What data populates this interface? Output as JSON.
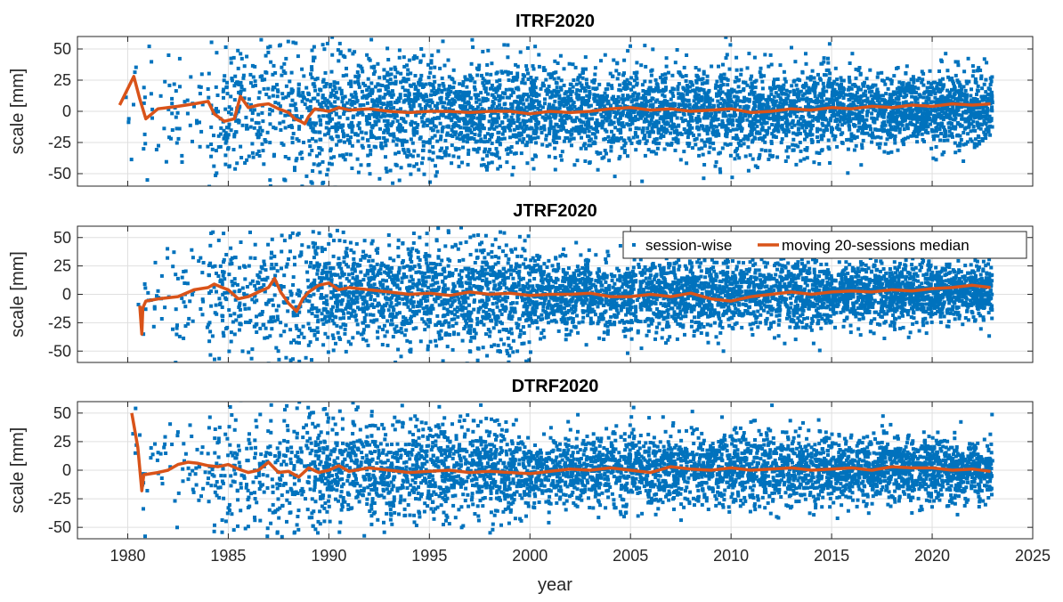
{
  "chart_data": [
    {
      "type": "scatter",
      "title": "ITRF2020",
      "ylabel": "scale [mm]",
      "xlabel": "",
      "xlim": [
        1977.5,
        2025
      ],
      "ylim": [
        -60,
        60
      ],
      "yticks": [
        50,
        25,
        0,
        -25,
        -50
      ],
      "ytick_labels": [
        "50",
        "25",
        "0",
        "-25",
        "-50"
      ],
      "grid": true,
      "legend": null,
      "scatter_spec": {
        "series": "session-wise",
        "marker": "square",
        "color": "#0072BD",
        "approx_sessions": 5500,
        "spread_by_period": [
          {
            "from": 1979.5,
            "to": 1984,
            "sd_mm": 25
          },
          {
            "from": 1984,
            "to": 1990,
            "sd_mm": 28
          },
          {
            "from": 1990,
            "to": 2000,
            "sd_mm": 22
          },
          {
            "from": 2000,
            "to": 2015,
            "sd_mm": 18
          },
          {
            "from": 2015,
            "to": 2023,
            "sd_mm": 15
          }
        ]
      },
      "median_series": {
        "name": "moving 20-sessions median",
        "color": "#D95319",
        "x": [
          1979.6,
          1980.3,
          1980.6,
          1980.9,
          1981.5,
          1982.5,
          1983.3,
          1984.0,
          1984.3,
          1984.8,
          1985.3,
          1985.6,
          1986.0,
          1986.5,
          1987.0,
          1987.5,
          1988.0,
          1988.3,
          1988.6,
          1988.8,
          1989.0,
          1989.3,
          1990.0,
          1990.5,
          1991.0,
          1992.0,
          1993.0,
          1994.0,
          1995.0,
          1996.0,
          1997.0,
          1998.0,
          1999.0,
          2000.0,
          2001.0,
          2002.0,
          2003.0,
          2004.0,
          2005.0,
          2006.0,
          2007.0,
          2008.0,
          2009.0,
          2010.0,
          2011.0,
          2012.0,
          2013.0,
          2014.0,
          2015.0,
          2016.0,
          2017.0,
          2018.0,
          2019.0,
          2020.0,
          2021.0,
          2022.0,
          2022.9
        ],
        "y": [
          5,
          28,
          10,
          -6,
          2,
          4,
          6,
          8,
          -2,
          -8,
          -6,
          12,
          3,
          5,
          6,
          2,
          -1,
          -6,
          -8,
          -10,
          -4,
          2,
          0,
          3,
          1,
          2,
          0,
          -1,
          0,
          0,
          -1,
          0,
          0,
          -2,
          0,
          -1,
          0,
          2,
          3,
          1,
          2,
          0,
          1,
          2,
          -1,
          0,
          2,
          1,
          3,
          2,
          4,
          3,
          5,
          4,
          6,
          5,
          6
        ]
      }
    },
    {
      "type": "scatter",
      "title": "JTRF2020",
      "ylabel": "scale [mm]",
      "xlabel": "",
      "xlim": [
        1977.5,
        2025
      ],
      "ylim": [
        -60,
        60
      ],
      "yticks": [
        50,
        25,
        0,
        -25,
        -50
      ],
      "ytick_labels": [
        "50",
        "25",
        "0",
        "-25",
        "-50"
      ],
      "grid": true,
      "legend": {
        "position": "top-right",
        "entries": [
          "session-wise",
          "moving 20-sessions median"
        ]
      },
      "scatter_spec": {
        "series": "session-wise",
        "marker": "square",
        "color": "#0072BD",
        "approx_sessions": 5500,
        "spread_by_period": [
          {
            "from": 1980.5,
            "to": 1984,
            "sd_mm": 22
          },
          {
            "from": 1984,
            "to": 1990,
            "sd_mm": 30
          },
          {
            "from": 1990,
            "to": 2000,
            "sd_mm": 24
          },
          {
            "from": 2000,
            "to": 2015,
            "sd_mm": 16
          },
          {
            "from": 2015,
            "to": 2023,
            "sd_mm": 13
          }
        ]
      },
      "median_series": {
        "name": "moving 20-sessions median",
        "color": "#D95319",
        "x": [
          1980.6,
          1980.7,
          1980.75,
          1980.9,
          1981.5,
          1982.5,
          1983.3,
          1984.0,
          1984.3,
          1984.7,
          1985.0,
          1985.5,
          1986.0,
          1986.5,
          1987.0,
          1987.3,
          1987.6,
          1988.0,
          1988.4,
          1988.7,
          1989.0,
          1989.5,
          1990.0,
          1990.5,
          1991.0,
          1992.0,
          1993.0,
          1994.0,
          1995.0,
          1996.0,
          1997.0,
          1998.0,
          1999.0,
          2000.0,
          2001.0,
          2002.0,
          2003.0,
          2004.0,
          2005.0,
          2006.0,
          2007.0,
          2008.0,
          2009.0,
          2010.0,
          2011.0,
          2012.0,
          2013.0,
          2014.0,
          2015.0,
          2016.0,
          2017.0,
          2018.0,
          2019.0,
          2020.0,
          2021.0,
          2022.0,
          2022.9
        ],
        "y": [
          -10,
          -35,
          -12,
          -6,
          -4,
          -2,
          4,
          6,
          9,
          6,
          4,
          -4,
          -2,
          2,
          6,
          14,
          2,
          -8,
          -15,
          -4,
          2,
          8,
          10,
          4,
          6,
          4,
          2,
          0,
          1,
          -1,
          2,
          0,
          1,
          -1,
          0,
          0,
          1,
          -2,
          -2,
          0,
          -2,
          1,
          -4,
          -6,
          -2,
          0,
          2,
          0,
          2,
          3,
          2,
          4,
          3,
          5,
          6,
          8,
          6
        ]
      }
    },
    {
      "type": "scatter",
      "title": "DTRF2020",
      "ylabel": "scale [mm]",
      "xlabel": "year",
      "xlim": [
        1977.5,
        2025
      ],
      "ylim": [
        -60,
        60
      ],
      "xticks": [
        1980,
        1985,
        1990,
        1995,
        2000,
        2005,
        2010,
        2015,
        2020,
        2025
      ],
      "xtick_labels": [
        "1980",
        "1985",
        "1990",
        "1995",
        "2000",
        "2005",
        "2010",
        "2015",
        "2020",
        "2025"
      ],
      "yticks": [
        50,
        25,
        0,
        -25,
        -50
      ],
      "ytick_labels": [
        "50",
        "25",
        "0",
        "-25",
        "-50"
      ],
      "grid": true,
      "legend": null,
      "scatter_spec": {
        "series": "session-wise",
        "marker": "square",
        "color": "#0072BD",
        "approx_sessions": 5000,
        "spread_by_period": [
          {
            "from": 1980.2,
            "to": 1984,
            "sd_mm": 20
          },
          {
            "from": 1984,
            "to": 1990,
            "sd_mm": 28
          },
          {
            "from": 1990,
            "to": 2000,
            "sd_mm": 22
          },
          {
            "from": 2000,
            "to": 2015,
            "sd_mm": 16
          },
          {
            "from": 2015,
            "to": 2023,
            "sd_mm": 14
          }
        ]
      },
      "median_series": {
        "name": "moving 20-sessions median",
        "color": "#D95319",
        "x": [
          1980.2,
          1980.5,
          1980.7,
          1980.8,
          1981.5,
          1982.0,
          1982.5,
          1983.0,
          1983.5,
          1984.0,
          1984.5,
          1985.0,
          1985.5,
          1986.0,
          1986.5,
          1987.0,
          1987.5,
          1988.0,
          1988.5,
          1989.0,
          1989.5,
          1990.0,
          1990.5,
          1991.0,
          1992.0,
          1993.0,
          1994.0,
          1995.0,
          1996.0,
          1997.0,
          1998.0,
          1999.0,
          2000.0,
          2001.0,
          2002.0,
          2003.0,
          2004.0,
          2005.0,
          2006.0,
          2007.0,
          2008.0,
          2009.0,
          2010.0,
          2011.0,
          2012.0,
          2013.0,
          2014.0,
          2015.0,
          2016.0,
          2017.0,
          2018.0,
          2019.0,
          2020.0,
          2021.0,
          2022.0,
          2022.9
        ],
        "y": [
          50,
          20,
          -18,
          -4,
          -2,
          0,
          5,
          7,
          6,
          4,
          3,
          5,
          1,
          -2,
          0,
          7,
          -2,
          -1,
          -6,
          2,
          -2,
          0,
          4,
          -1,
          2,
          0,
          -2,
          -1,
          0,
          -2,
          -1,
          -2,
          -3,
          -1,
          1,
          0,
          2,
          0,
          -2,
          3,
          1,
          0,
          2,
          0,
          1,
          2,
          0,
          1,
          2,
          0,
          3,
          2,
          2,
          0,
          1,
          -1
        ]
      }
    }
  ]
}
